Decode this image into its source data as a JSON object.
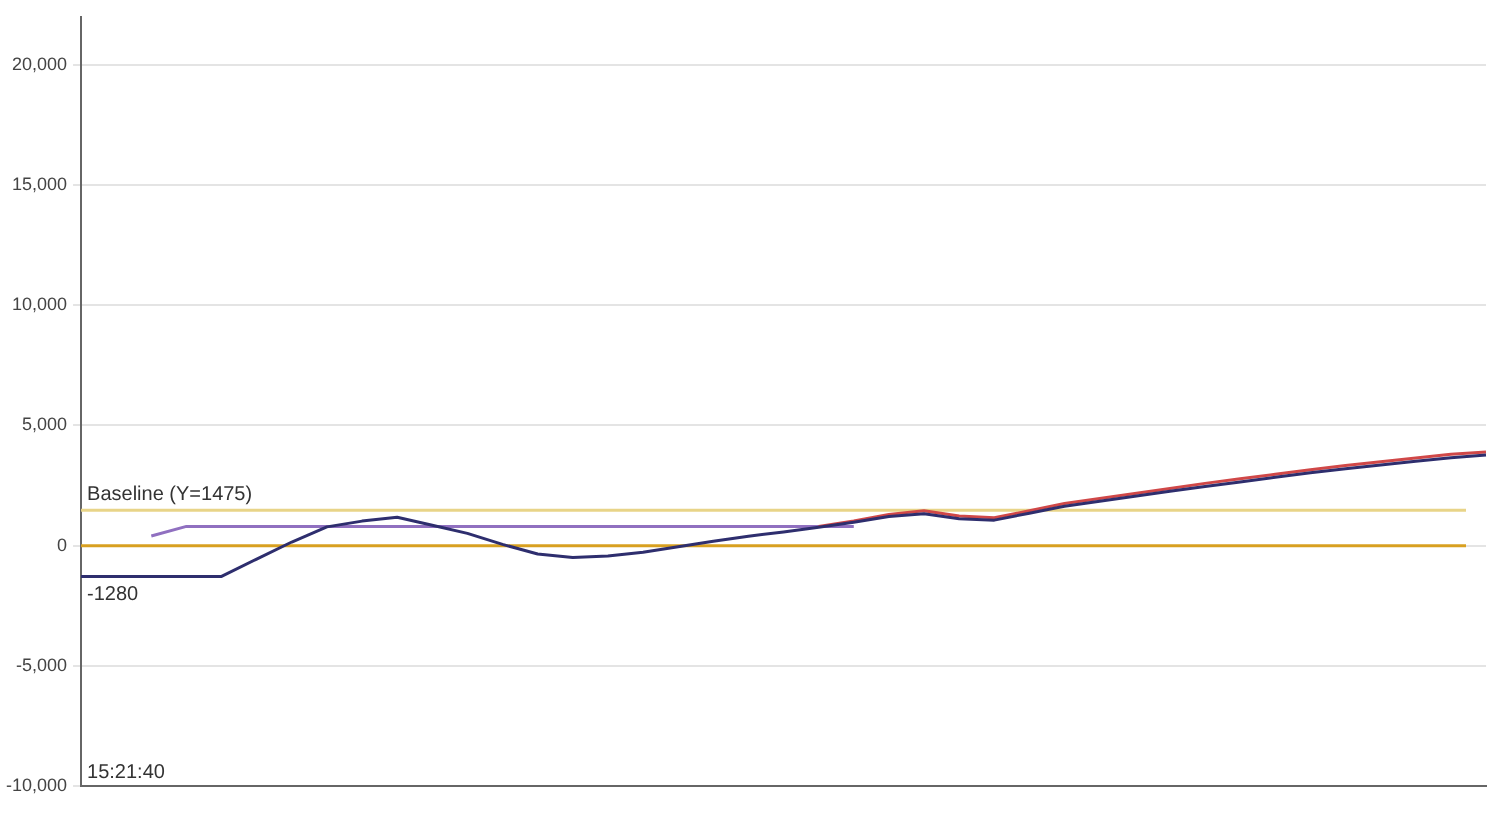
{
  "chart_data": {
    "type": "line",
    "categories": [
      null,
      null,
      null,
      null,
      null,
      null,
      null,
      null,
      null,
      null,
      null,
      null,
      null,
      null,
      null,
      null,
      null,
      null,
      null,
      null,
      null,
      null,
      null,
      null,
      null,
      null,
      null,
      null,
      null,
      null,
      null,
      null,
      null,
      null,
      null,
      null,
      null,
      null,
      null,
      null,
      null
    ],
    "series": [
      {
        "color": "#2e2e6e",
        "values": [
          -1280,
          -1280,
          -1280,
          -1280,
          -1280,
          -560,
          150,
          780,
          1020,
          1180,
          850,
          510,
          50,
          -350,
          -490,
          -430,
          -280,
          -50,
          180,
          390,
          570,
          760,
          970,
          1210,
          1330,
          1120,
          1060,
          1350,
          1640,
          1850,
          2050,
          2260,
          2460,
          2650,
          2840,
          3030,
          3200,
          3350,
          3510,
          3660,
          3770
        ]
      },
      {
        "color": "#d04848",
        "values": [
          null,
          null,
          null,
          null,
          null,
          null,
          null,
          null,
          null,
          null,
          null,
          null,
          null,
          null,
          null,
          null,
          null,
          null,
          null,
          null,
          null,
          800,
          1030,
          1300,
          1450,
          1230,
          1160,
          1450,
          1750,
          1960,
          2170,
          2380,
          2590,
          2780,
          2970,
          3160,
          3330,
          3490,
          3650,
          3800,
          3900
        ]
      },
      {
        "color": "#9070c0",
        "values": [
          null,
          null,
          400,
          800,
          800,
          800,
          800,
          800,
          800,
          800,
          800,
          800,
          800,
          800,
          800,
          800,
          800,
          800,
          800,
          800,
          800,
          800,
          800,
          null,
          null,
          null,
          null,
          null,
          null,
          null,
          null,
          null,
          null,
          null,
          null,
          null,
          null,
          null,
          null,
          null,
          null
        ]
      }
    ],
    "ylim": [
      -10000,
      22000
    ],
    "yticks": [
      {
        "value": -10000,
        "label": "-10,000"
      },
      {
        "value": -5000,
        "label": "-5,000"
      },
      0,
      {
        "value": 5000,
        "label": "5,000"
      },
      {
        "value": 10000,
        "label": "10,000"
      },
      {
        "value": 15000,
        "label": "15,000"
      },
      {
        "value": 20000,
        "label": "20,000"
      }
    ],
    "tick_labels": "y",
    "grid": "y",
    "legend": false,
    "marker": "none",
    "line_style": "solid",
    "ref_lines": [
      {
        "axis": "y",
        "value": 1475,
        "label": "Baseline (Y=1475)",
        "color": "#e8d488"
      },
      {
        "axis": "y",
        "value": 0,
        "label": null,
        "color": "#d8a020"
      }
    ],
    "annotations": [
      {
        "text": "-1280",
        "y": -1280
      },
      "15:21:40"
    ]
  }
}
